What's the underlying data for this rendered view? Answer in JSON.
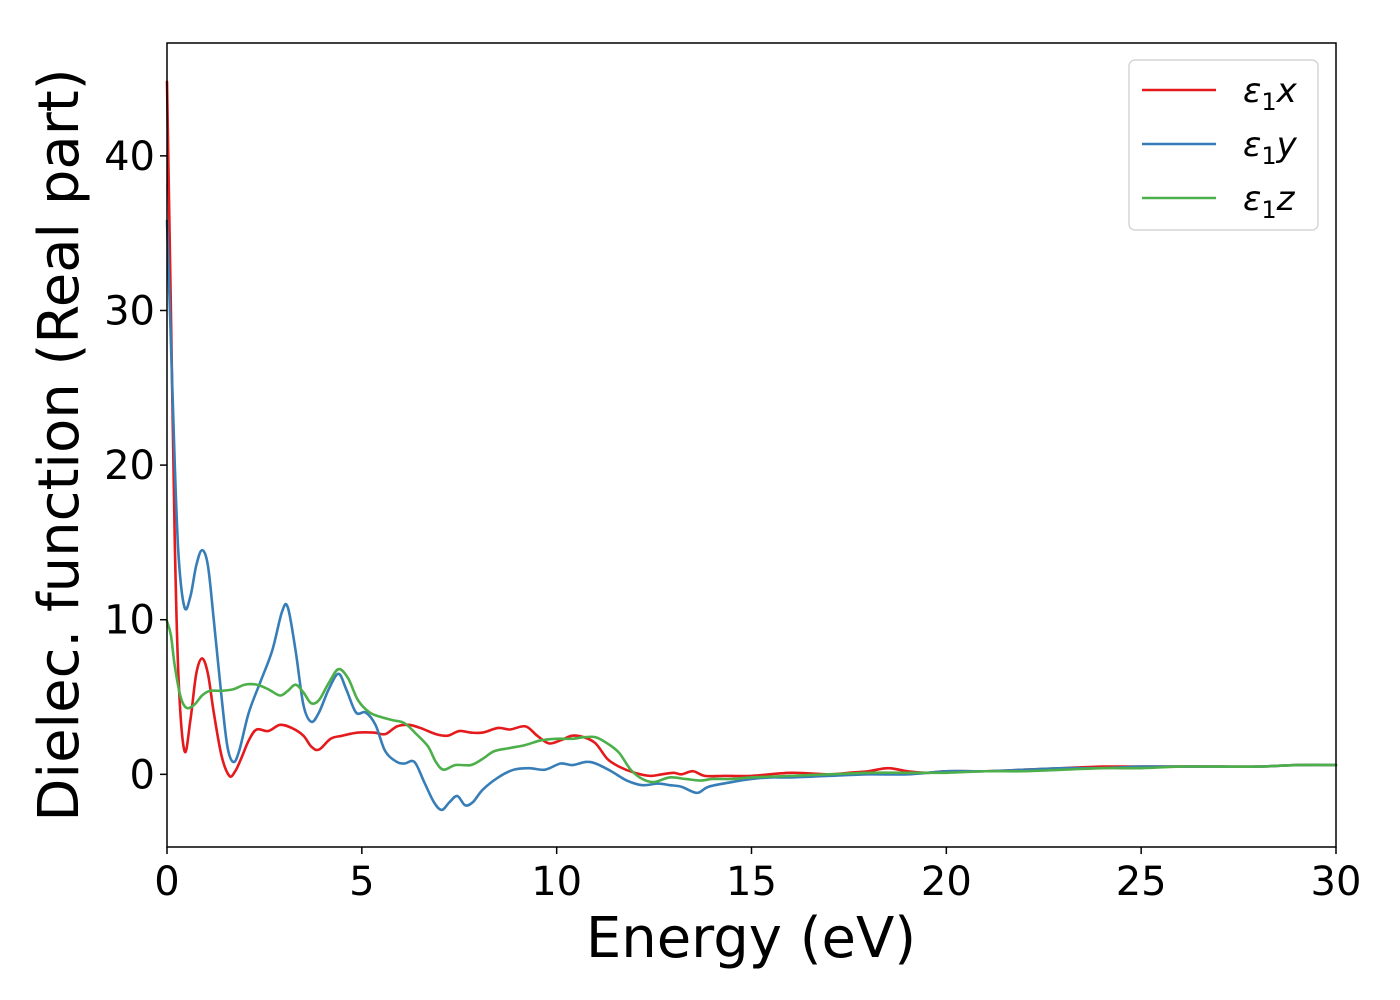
{
  "chart_data": {
    "type": "line",
    "title": "",
    "xlabel": "Energy (eV)",
    "ylabel": "Dielec. function (Real part)",
    "xlim": [
      0,
      30
    ],
    "ylim": [
      -4.7,
      47.3
    ],
    "xticks": [
      0,
      5,
      10,
      15,
      20,
      25,
      30
    ],
    "yticks": [
      0,
      10,
      20,
      30,
      40
    ],
    "grid": false,
    "legend_position": "top-right",
    "series": [
      {
        "name": "ε₁x",
        "label_base": "ε",
        "label_sub": "1",
        "label_suffix": "x",
        "color": "#e41a1c",
        "points": [
          [
            0,
            44.8
          ],
          [
            0.1,
            30
          ],
          [
            0.2,
            15
          ],
          [
            0.3,
            6
          ],
          [
            0.45,
            1.5
          ],
          [
            0.6,
            3.5
          ],
          [
            0.75,
            6.5
          ],
          [
            0.9,
            7.5
          ],
          [
            1.05,
            6.5
          ],
          [
            1.2,
            4
          ],
          [
            1.4,
            1.2
          ],
          [
            1.6,
            -0.1
          ],
          [
            1.75,
            0.2
          ],
          [
            1.9,
            1
          ],
          [
            2.1,
            2.2
          ],
          [
            2.3,
            2.9
          ],
          [
            2.6,
            2.8
          ],
          [
            2.9,
            3.2
          ],
          [
            3.2,
            3
          ],
          [
            3.5,
            2.5
          ],
          [
            3.7,
            1.8
          ],
          [
            3.9,
            1.6
          ],
          [
            4.2,
            2.3
          ],
          [
            4.5,
            2.5
          ],
          [
            4.9,
            2.7
          ],
          [
            5.3,
            2.7
          ],
          [
            5.6,
            2.6
          ],
          [
            5.9,
            3.1
          ],
          [
            6.2,
            3.2
          ],
          [
            6.5,
            3
          ],
          [
            6.9,
            2.6
          ],
          [
            7.2,
            2.5
          ],
          [
            7.5,
            2.8
          ],
          [
            7.8,
            2.7
          ],
          [
            8.1,
            2.7
          ],
          [
            8.5,
            3
          ],
          [
            8.8,
            2.9
          ],
          [
            9.2,
            3.1
          ],
          [
            9.5,
            2.5
          ],
          [
            9.8,
            2
          ],
          [
            10.1,
            2.2
          ],
          [
            10.4,
            2.5
          ],
          [
            10.7,
            2.4
          ],
          [
            11,
            2
          ],
          [
            11.3,
            1
          ],
          [
            11.6,
            0.5
          ],
          [
            12,
            0.1
          ],
          [
            12.4,
            -0.1
          ],
          [
            12.7,
            0
          ],
          [
            13,
            0.1
          ],
          [
            13.2,
            0
          ],
          [
            13.5,
            0.2
          ],
          [
            13.8,
            -0.1
          ],
          [
            14.3,
            -0.1
          ],
          [
            15,
            -0.1
          ],
          [
            16,
            0.1
          ],
          [
            17,
            0
          ],
          [
            17.5,
            0.1
          ],
          [
            18,
            0.2
          ],
          [
            18.5,
            0.4
          ],
          [
            19,
            0.2
          ],
          [
            19.5,
            0.1
          ],
          [
            20,
            0.2
          ],
          [
            21,
            0.2
          ],
          [
            22,
            0.3
          ],
          [
            23,
            0.4
          ],
          [
            24,
            0.5
          ],
          [
            24.5,
            0.5
          ],
          [
            25,
            0.5
          ],
          [
            26,
            0.5
          ],
          [
            27,
            0.5
          ],
          [
            28,
            0.5
          ],
          [
            29,
            0.6
          ],
          [
            30,
            0.6
          ]
        ]
      },
      {
        "name": "ε₁y",
        "label_base": "ε",
        "label_sub": "1",
        "label_suffix": "y",
        "color": "#377eb8",
        "points": [
          [
            0,
            35.8
          ],
          [
            0.1,
            28
          ],
          [
            0.2,
            20
          ],
          [
            0.3,
            14
          ],
          [
            0.45,
            10.8
          ],
          [
            0.6,
            11.5
          ],
          [
            0.75,
            13.5
          ],
          [
            0.9,
            14.5
          ],
          [
            1.05,
            13.5
          ],
          [
            1.2,
            10
          ],
          [
            1.4,
            5
          ],
          [
            1.55,
            1.8
          ],
          [
            1.7,
            0.8
          ],
          [
            1.85,
            1.5
          ],
          [
            2.1,
            4
          ],
          [
            2.4,
            6
          ],
          [
            2.7,
            8
          ],
          [
            2.95,
            10.5
          ],
          [
            3.1,
            10.8
          ],
          [
            3.3,
            8
          ],
          [
            3.5,
            4.5
          ],
          [
            3.7,
            3.4
          ],
          [
            3.9,
            4
          ],
          [
            4.15,
            5.5
          ],
          [
            4.4,
            6.5
          ],
          [
            4.6,
            5.5
          ],
          [
            4.85,
            4
          ],
          [
            5.1,
            4
          ],
          [
            5.35,
            3.2
          ],
          [
            5.6,
            1.5
          ],
          [
            5.9,
            0.8
          ],
          [
            6.1,
            0.7
          ],
          [
            6.35,
            0.8
          ],
          [
            6.6,
            -0.5
          ],
          [
            6.85,
            -1.8
          ],
          [
            7.05,
            -2.3
          ],
          [
            7.25,
            -1.8
          ],
          [
            7.45,
            -1.4
          ],
          [
            7.65,
            -2
          ],
          [
            7.85,
            -1.8
          ],
          [
            8.1,
            -1
          ],
          [
            8.5,
            -0.2
          ],
          [
            8.9,
            0.3
          ],
          [
            9.3,
            0.4
          ],
          [
            9.7,
            0.3
          ],
          [
            10.1,
            0.7
          ],
          [
            10.4,
            0.6
          ],
          [
            10.75,
            0.8
          ],
          [
            11,
            0.7
          ],
          [
            11.4,
            0.2
          ],
          [
            11.8,
            -0.4
          ],
          [
            12.2,
            -0.7
          ],
          [
            12.6,
            -0.6
          ],
          [
            12.9,
            -0.7
          ],
          [
            13.2,
            -0.8
          ],
          [
            13.6,
            -1.2
          ],
          [
            13.9,
            -0.8
          ],
          [
            14.5,
            -0.5
          ],
          [
            15,
            -0.3
          ],
          [
            15.5,
            -0.2
          ],
          [
            16,
            -0.2
          ],
          [
            17,
            -0.1
          ],
          [
            18,
            0
          ],
          [
            19,
            0
          ],
          [
            20,
            0.2
          ],
          [
            21,
            0.2
          ],
          [
            22,
            0.3
          ],
          [
            23,
            0.4
          ],
          [
            24,
            0.4
          ],
          [
            25,
            0.5
          ],
          [
            26,
            0.5
          ],
          [
            27,
            0.5
          ],
          [
            28,
            0.5
          ],
          [
            29,
            0.6
          ],
          [
            30,
            0.6
          ]
        ]
      },
      {
        "name": "ε₁z",
        "label_base": "ε",
        "label_sub": "1",
        "label_suffix": "z",
        "color": "#4daf4a",
        "points": [
          [
            0,
            9.9
          ],
          [
            0.1,
            9
          ],
          [
            0.2,
            7
          ],
          [
            0.35,
            5
          ],
          [
            0.5,
            4.3
          ],
          [
            0.7,
            4.5
          ],
          [
            0.9,
            5.1
          ],
          [
            1.1,
            5.4
          ],
          [
            1.4,
            5.4
          ],
          [
            1.7,
            5.5
          ],
          [
            2,
            5.8
          ],
          [
            2.3,
            5.8
          ],
          [
            2.6,
            5.5
          ],
          [
            2.9,
            5.1
          ],
          [
            3.1,
            5.4
          ],
          [
            3.3,
            5.8
          ],
          [
            3.5,
            5.3
          ],
          [
            3.7,
            4.6
          ],
          [
            3.9,
            4.8
          ],
          [
            4.15,
            5.9
          ],
          [
            4.4,
            6.8
          ],
          [
            4.65,
            6.2
          ],
          [
            4.9,
            4.8
          ],
          [
            5.2,
            4
          ],
          [
            5.5,
            3.7
          ],
          [
            5.8,
            3.5
          ],
          [
            6.1,
            3.3
          ],
          [
            6.4,
            2.6
          ],
          [
            6.7,
            1.8
          ],
          [
            6.9,
            0.8
          ],
          [
            7.1,
            0.3
          ],
          [
            7.4,
            0.6
          ],
          [
            7.8,
            0.6
          ],
          [
            8.1,
            1
          ],
          [
            8.4,
            1.5
          ],
          [
            8.8,
            1.7
          ],
          [
            9.2,
            1.9
          ],
          [
            9.6,
            2.2
          ],
          [
            10,
            2.3
          ],
          [
            10.4,
            2.3
          ],
          [
            10.7,
            2.4
          ],
          [
            11,
            2.4
          ],
          [
            11.3,
            2
          ],
          [
            11.6,
            1.4
          ],
          [
            11.9,
            0.3
          ],
          [
            12.2,
            -0.3
          ],
          [
            12.5,
            -0.5
          ],
          [
            12.9,
            -0.2
          ],
          [
            13.3,
            -0.3
          ],
          [
            13.7,
            -0.4
          ],
          [
            14,
            -0.3
          ],
          [
            14.5,
            -0.3
          ],
          [
            15,
            -0.2
          ],
          [
            16,
            -0.1
          ],
          [
            17,
            0
          ],
          [
            18,
            0.1
          ],
          [
            19,
            0.1
          ],
          [
            20,
            0.1
          ],
          [
            21,
            0.2
          ],
          [
            22,
            0.2
          ],
          [
            23,
            0.3
          ],
          [
            24,
            0.4
          ],
          [
            25,
            0.4
          ],
          [
            26,
            0.5
          ],
          [
            27,
            0.5
          ],
          [
            28,
            0.5
          ],
          [
            29,
            0.6
          ],
          [
            30,
            0.6
          ]
        ]
      }
    ]
  }
}
